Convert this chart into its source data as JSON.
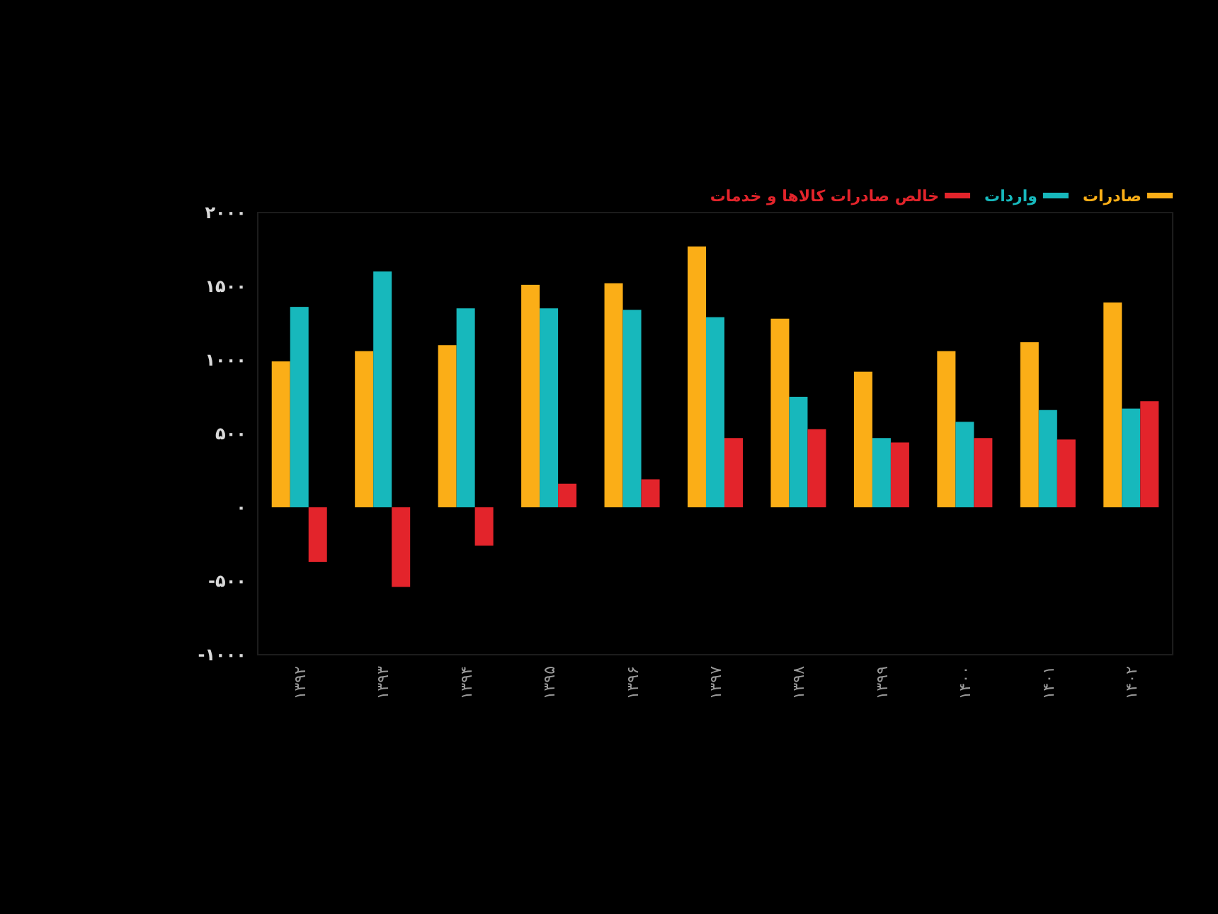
{
  "chart_data": {
    "type": "bar",
    "categories": [
      "۱۳۹۲",
      "۱۳۹۳",
      "۱۳۹۴",
      "۱۳۹۵",
      "۱۳۹۶",
      "۱۳۹۷",
      "۱۳۹۸",
      "۱۳۹۹",
      "۱۴۰۰",
      "۱۴۰۱",
      "۱۴۰۲"
    ],
    "series": [
      {
        "name": "صادرات",
        "color": "#fbae17",
        "values": [
          990,
          1060,
          1100,
          1510,
          1520,
          1770,
          1280,
          920,
          1060,
          1120,
          1390
        ]
      },
      {
        "name": "واردات",
        "color": "#17b8bc",
        "values": [
          1360,
          1600,
          1350,
          1350,
          1340,
          1290,
          750,
          470,
          580,
          660,
          670
        ]
      },
      {
        "name": "خالص صادرات کالاها و خدمات",
        "color": "#e3242b",
        "values": [
          -370,
          -540,
          -260,
          160,
          190,
          470,
          530,
          440,
          470,
          460,
          720
        ]
      }
    ],
    "ylim": [
      -1000,
      2000
    ],
    "yticks": [
      {
        "value": -1000,
        "label": "-۱۰۰۰"
      },
      {
        "value": -500,
        "label": "-۵۰۰"
      },
      {
        "value": 0,
        "label": "۰"
      },
      {
        "value": 500,
        "label": "۵۰۰"
      },
      {
        "value": 1000,
        "label": "۱۰۰۰"
      },
      {
        "value": 1500,
        "label": "۱۵۰۰"
      },
      {
        "value": 2000,
        "label": "۲۰۰۰"
      }
    ],
    "legend": "top right"
  }
}
